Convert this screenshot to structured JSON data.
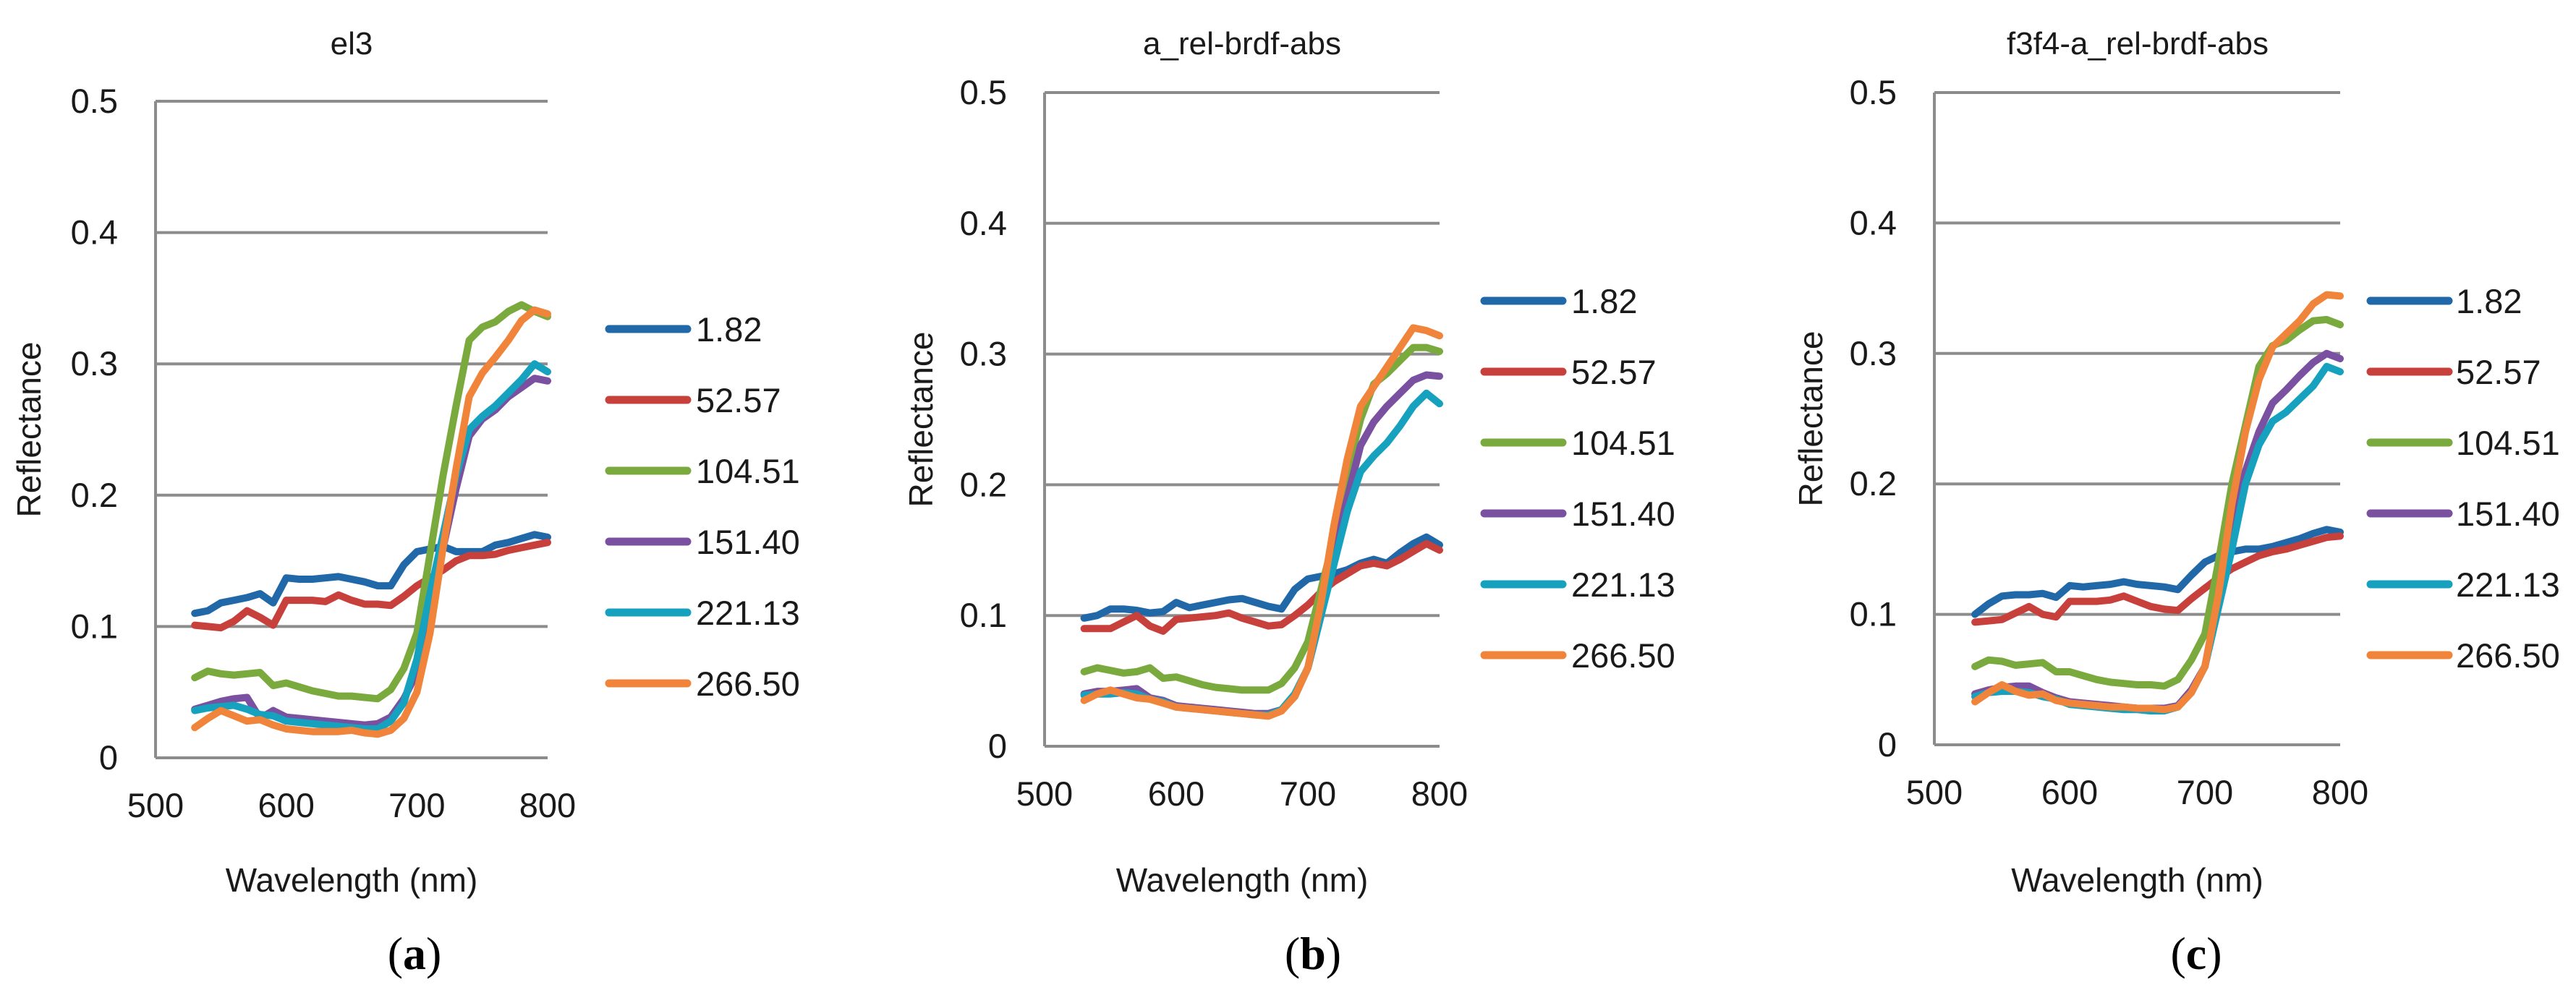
{
  "chart_data": [
    {
      "type": "line",
      "panel_id": "a",
      "title": "el3",
      "caption": "a",
      "xlabel": "Wavelength (nm)",
      "ylabel": "Reflectance",
      "xlim": [
        500,
        800
      ],
      "ylim": [
        0,
        0.5
      ],
      "xticks": [
        500,
        600,
        700,
        800
      ],
      "yticks": [
        0,
        0.1,
        0.2,
        0.3,
        0.4,
        0.5
      ],
      "xtick_labels": [
        "500",
        "600",
        "700",
        "800"
      ],
      "ytick_labels": [
        "0",
        "0.1",
        "0.2",
        "0.3",
        "0.4",
        "0.5"
      ],
      "x": [
        530,
        540,
        550,
        560,
        570,
        580,
        590,
        600,
        610,
        620,
        630,
        640,
        650,
        660,
        670,
        680,
        690,
        700,
        710,
        720,
        730,
        740,
        750,
        760,
        770,
        780,
        790,
        800
      ],
      "series": [
        {
          "name": "1.82",
          "values": [
            0.11,
            0.112,
            0.118,
            0.12,
            0.122,
            0.125,
            0.118,
            0.137,
            0.136,
            0.136,
            0.137,
            0.138,
            0.136,
            0.134,
            0.131,
            0.131,
            0.147,
            0.157,
            0.159,
            0.161,
            0.157,
            0.157,
            0.157,
            0.162,
            0.164,
            0.167,
            0.17,
            0.168
          ]
        },
        {
          "name": "52.57",
          "values": [
            0.101,
            0.1,
            0.099,
            0.104,
            0.112,
            0.107,
            0.101,
            0.12,
            0.12,
            0.12,
            0.119,
            0.124,
            0.12,
            0.117,
            0.117,
            0.116,
            0.123,
            0.131,
            0.137,
            0.143,
            0.15,
            0.154,
            0.154,
            0.155,
            0.158,
            0.16,
            0.162,
            0.164
          ]
        },
        {
          "name": "104.51",
          "values": [
            0.061,
            0.066,
            0.064,
            0.063,
            0.064,
            0.065,
            0.055,
            0.057,
            0.054,
            0.051,
            0.049,
            0.047,
            0.047,
            0.046,
            0.045,
            0.052,
            0.068,
            0.095,
            0.155,
            0.215,
            0.268,
            0.318,
            0.328,
            0.332,
            0.34,
            0.345,
            0.34,
            0.336
          ]
        },
        {
          "name": "151.40",
          "values": [
            0.037,
            0.04,
            0.043,
            0.045,
            0.046,
            0.03,
            0.036,
            0.031,
            0.03,
            0.029,
            0.028,
            0.027,
            0.026,
            0.025,
            0.026,
            0.031,
            0.045,
            0.065,
            0.11,
            0.16,
            0.205,
            0.245,
            0.258,
            0.265,
            0.275,
            0.282,
            0.289,
            0.287
          ]
        },
        {
          "name": "221.13",
          "values": [
            0.036,
            0.038,
            0.039,
            0.04,
            0.037,
            0.033,
            0.032,
            0.028,
            0.027,
            0.026,
            0.025,
            0.024,
            0.023,
            0.022,
            0.022,
            0.028,
            0.042,
            0.075,
            0.125,
            0.17,
            0.215,
            0.25,
            0.26,
            0.268,
            0.278,
            0.288,
            0.3,
            0.294
          ]
        },
        {
          "name": "266.50",
          "values": [
            0.023,
            0.03,
            0.036,
            0.032,
            0.028,
            0.029,
            0.025,
            0.022,
            0.021,
            0.02,
            0.02,
            0.02,
            0.021,
            0.019,
            0.018,
            0.021,
            0.03,
            0.05,
            0.095,
            0.16,
            0.22,
            0.275,
            0.293,
            0.305,
            0.318,
            0.333,
            0.341,
            0.338
          ]
        }
      ]
    },
    {
      "type": "line",
      "panel_id": "b",
      "title": "a_rel-brdf-abs",
      "caption": "b",
      "xlabel": "Wavelength (nm)",
      "ylabel": "Reflectance",
      "xlim": [
        500,
        800
      ],
      "ylim": [
        0,
        0.5
      ],
      "xticks": [
        500,
        600,
        700,
        800
      ],
      "yticks": [
        0,
        0.1,
        0.2,
        0.3,
        0.4,
        0.5
      ],
      "xtick_labels": [
        "500",
        "600",
        "700",
        "800"
      ],
      "ytick_labels": [
        "0",
        "0.1",
        "0.2",
        "0.3",
        "0.4",
        "0.5"
      ],
      "x": [
        530,
        540,
        550,
        560,
        570,
        580,
        590,
        600,
        610,
        620,
        630,
        640,
        650,
        660,
        670,
        680,
        690,
        700,
        710,
        720,
        730,
        740,
        750,
        760,
        770,
        780,
        790,
        800
      ],
      "series": [
        {
          "name": "1.82",
          "values": [
            0.098,
            0.1,
            0.105,
            0.105,
            0.104,
            0.102,
            0.103,
            0.11,
            0.106,
            0.108,
            0.11,
            0.112,
            0.113,
            0.11,
            0.107,
            0.105,
            0.12,
            0.128,
            0.13,
            0.132,
            0.135,
            0.14,
            0.143,
            0.14,
            0.148,
            0.155,
            0.16,
            0.154
          ]
        },
        {
          "name": "52.57",
          "values": [
            0.09,
            0.09,
            0.09,
            0.095,
            0.1,
            0.092,
            0.088,
            0.097,
            0.098,
            0.099,
            0.1,
            0.102,
            0.098,
            0.095,
            0.092,
            0.093,
            0.1,
            0.108,
            0.118,
            0.126,
            0.132,
            0.138,
            0.14,
            0.138,
            0.143,
            0.149,
            0.155,
            0.15
          ]
        },
        {
          "name": "104.51",
          "values": [
            0.057,
            0.06,
            0.058,
            0.056,
            0.057,
            0.06,
            0.052,
            0.053,
            0.05,
            0.047,
            0.045,
            0.044,
            0.043,
            0.043,
            0.043,
            0.048,
            0.06,
            0.08,
            0.12,
            0.16,
            0.21,
            0.25,
            0.277,
            0.285,
            0.295,
            0.305,
            0.305,
            0.302
          ]
        },
        {
          "name": "151.40",
          "values": [
            0.04,
            0.042,
            0.042,
            0.043,
            0.044,
            0.037,
            0.035,
            0.031,
            0.03,
            0.029,
            0.028,
            0.027,
            0.026,
            0.025,
            0.025,
            0.028,
            0.038,
            0.06,
            0.1,
            0.15,
            0.19,
            0.23,
            0.248,
            0.26,
            0.27,
            0.28,
            0.284,
            0.283
          ]
        },
        {
          "name": "221.13",
          "values": [
            0.039,
            0.04,
            0.04,
            0.041,
            0.04,
            0.036,
            0.034,
            0.03,
            0.029,
            0.028,
            0.027,
            0.026,
            0.025,
            0.024,
            0.024,
            0.028,
            0.04,
            0.06,
            0.1,
            0.14,
            0.18,
            0.21,
            0.222,
            0.232,
            0.245,
            0.26,
            0.27,
            0.262
          ]
        },
        {
          "name": "266.50",
          "values": [
            0.035,
            0.04,
            0.043,
            0.04,
            0.037,
            0.036,
            0.033,
            0.03,
            0.029,
            0.028,
            0.027,
            0.026,
            0.025,
            0.024,
            0.023,
            0.027,
            0.038,
            0.06,
            0.11,
            0.17,
            0.22,
            0.26,
            0.275,
            0.29,
            0.305,
            0.32,
            0.318,
            0.314
          ]
        }
      ]
    },
    {
      "type": "line",
      "panel_id": "c",
      "title": "f3f4-a_rel-brdf-abs",
      "caption": "c",
      "xlabel": "Wavelength (nm)",
      "ylabel": "Reflectance",
      "xlim": [
        500,
        800
      ],
      "ylim": [
        0,
        0.5
      ],
      "xticks": [
        500,
        600,
        700,
        800
      ],
      "yticks": [
        0,
        0.1,
        0.2,
        0.3,
        0.4,
        0.5
      ],
      "xtick_labels": [
        "500",
        "600",
        "700",
        "800"
      ],
      "ytick_labels": [
        "0",
        "0.1",
        "0.2",
        "0.3",
        "0.4",
        "0.5"
      ],
      "x": [
        530,
        540,
        550,
        560,
        570,
        580,
        590,
        600,
        610,
        620,
        630,
        640,
        650,
        660,
        670,
        680,
        690,
        700,
        710,
        720,
        730,
        740,
        750,
        760,
        770,
        780,
        790,
        800
      ],
      "series": [
        {
          "name": "1.82",
          "values": [
            0.1,
            0.108,
            0.114,
            0.115,
            0.115,
            0.116,
            0.113,
            0.122,
            0.121,
            0.122,
            0.123,
            0.125,
            0.123,
            0.122,
            0.121,
            0.119,
            0.13,
            0.14,
            0.145,
            0.148,
            0.15,
            0.15,
            0.152,
            0.155,
            0.158,
            0.162,
            0.165,
            0.163
          ]
        },
        {
          "name": "52.57",
          "values": [
            0.094,
            0.095,
            0.096,
            0.101,
            0.106,
            0.1,
            0.098,
            0.11,
            0.11,
            0.11,
            0.111,
            0.114,
            0.11,
            0.106,
            0.104,
            0.103,
            0.112,
            0.12,
            0.128,
            0.135,
            0.14,
            0.145,
            0.148,
            0.15,
            0.153,
            0.156,
            0.159,
            0.16
          ]
        },
        {
          "name": "104.51",
          "values": [
            0.06,
            0.065,
            0.064,
            0.061,
            0.062,
            0.063,
            0.056,
            0.056,
            0.053,
            0.05,
            0.048,
            0.047,
            0.046,
            0.046,
            0.045,
            0.05,
            0.065,
            0.085,
            0.14,
            0.2,
            0.245,
            0.29,
            0.306,
            0.31,
            0.318,
            0.325,
            0.326,
            0.322
          ]
        },
        {
          "name": "151.40",
          "values": [
            0.039,
            0.042,
            0.044,
            0.045,
            0.045,
            0.04,
            0.036,
            0.033,
            0.032,
            0.031,
            0.03,
            0.029,
            0.028,
            0.028,
            0.028,
            0.03,
            0.042,
            0.06,
            0.11,
            0.165,
            0.21,
            0.24,
            0.262,
            0.272,
            0.283,
            0.293,
            0.3,
            0.296
          ]
        },
        {
          "name": "221.13",
          "values": [
            0.037,
            0.04,
            0.041,
            0.041,
            0.04,
            0.037,
            0.035,
            0.031,
            0.03,
            0.029,
            0.028,
            0.027,
            0.027,
            0.026,
            0.026,
            0.029,
            0.04,
            0.06,
            0.105,
            0.15,
            0.2,
            0.23,
            0.248,
            0.255,
            0.265,
            0.275,
            0.29,
            0.286
          ]
        },
        {
          "name": "266.50",
          "values": [
            0.033,
            0.04,
            0.046,
            0.041,
            0.038,
            0.039,
            0.034,
            0.032,
            0.031,
            0.03,
            0.029,
            0.029,
            0.028,
            0.028,
            0.027,
            0.029,
            0.04,
            0.06,
            0.115,
            0.185,
            0.24,
            0.28,
            0.305,
            0.315,
            0.325,
            0.338,
            0.345,
            0.344
          ]
        }
      ]
    }
  ],
  "series_colors": [
    "#2068a8",
    "#c8403c",
    "#7aaa3e",
    "#7a50a0",
    "#16a2be",
    "#f0843a"
  ]
}
